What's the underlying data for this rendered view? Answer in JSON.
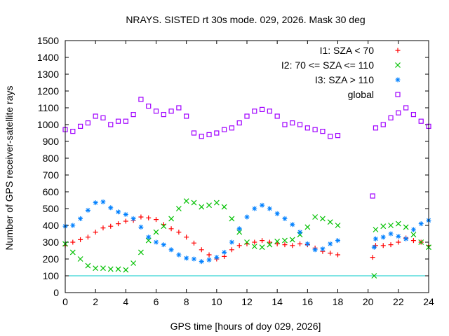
{
  "chart_data": {
    "type": "scatter",
    "title": "NRAYS. SISTED rt 30s mode. 029, 2026. Mask 30 deg",
    "xlabel": "GPS time [hours of doy 029, 2026]",
    "ylabel": "Number of GPS receiver-satellite rays",
    "xlim": [
      0,
      24
    ],
    "ylim": [
      0,
      1500
    ],
    "xticks": [
      "0",
      "2",
      "4",
      "6",
      "8",
      "10",
      "12",
      "14",
      "16",
      "18",
      "20",
      "22",
      "24"
    ],
    "yticks": [
      "0",
      "100",
      "200",
      "300",
      "400",
      "500",
      "600",
      "700",
      "800",
      "900",
      "1000",
      "1100",
      "1200",
      "1300",
      "1400",
      "1500"
    ],
    "legend_position": "top-right",
    "reference_line": {
      "y": 100,
      "color": "#00c8c8"
    },
    "series": [
      {
        "name": "I1: SZA < 70",
        "marker": "+",
        "color": "#ff0000",
        "x": [
          0,
          0.5,
          1,
          1.5,
          2,
          2.5,
          3,
          3.5,
          4,
          4.5,
          5,
          5.5,
          6,
          6.5,
          7,
          7.5,
          8,
          8.5,
          9,
          9.5,
          10,
          10.5,
          11,
          11.5,
          12,
          12.5,
          13,
          13.5,
          14,
          14.5,
          15,
          15.5,
          16,
          16.5,
          17,
          17.5,
          18,
          20.3,
          20.5,
          21,
          21.5,
          22,
          22.5,
          23,
          23.5,
          24
        ],
        "values": [
          280,
          300,
          315,
          330,
          360,
          385,
          395,
          410,
          425,
          430,
          450,
          445,
          435,
          405,
          380,
          360,
          330,
          295,
          255,
          225,
          200,
          215,
          255,
          280,
          290,
          300,
          310,
          300,
          290,
          285,
          280,
          290,
          285,
          265,
          245,
          235,
          225,
          210,
          280,
          280,
          285,
          300,
          325,
          310,
          300,
          280
        ]
      },
      {
        "name": "I2: 70 <= SZA <= 110",
        "marker": "x",
        "color": "#00c000",
        "x": [
          0,
          0.5,
          1,
          1.5,
          2,
          2.5,
          3,
          3.5,
          4,
          4.5,
          5,
          5.5,
          6,
          6.5,
          7,
          7.5,
          8,
          8.5,
          9,
          9.5,
          10,
          10.5,
          11,
          11.5,
          12,
          12.5,
          13,
          13.5,
          14,
          14.5,
          15,
          15.5,
          16,
          16.5,
          17,
          17.5,
          18,
          20.4,
          20.5,
          21,
          21.5,
          22,
          22.5,
          23,
          23.5,
          24
        ],
        "values": [
          290,
          240,
          200,
          160,
          145,
          145,
          140,
          140,
          135,
          175,
          240,
          310,
          360,
          395,
          440,
          500,
          545,
          535,
          510,
          520,
          535,
          510,
          440,
          360,
          300,
          275,
          270,
          285,
          305,
          310,
          315,
          345,
          390,
          450,
          440,
          420,
          400,
          100,
          375,
          395,
          400,
          410,
          390,
          345,
          300,
          270
        ]
      },
      {
        "name": "I3: SZA > 110",
        "marker": "*",
        "color": "#0080ff",
        "x": [
          0,
          0.5,
          1,
          1.5,
          2,
          2.5,
          3,
          3.5,
          4,
          4.5,
          5,
          5.5,
          6,
          6.5,
          7,
          7.5,
          8,
          8.5,
          9,
          9.5,
          10,
          10.5,
          11,
          11.5,
          12,
          12.5,
          13,
          13.5,
          14,
          14.5,
          15,
          15.5,
          16,
          16.5,
          17,
          17.5,
          18,
          20.4,
          20.5,
          21,
          21.5,
          22,
          22.5,
          23,
          23.5,
          24
        ],
        "values": [
          395,
          400,
          440,
          490,
          535,
          540,
          505,
          480,
          465,
          440,
          390,
          330,
          300,
          285,
          255,
          225,
          205,
          200,
          185,
          195,
          210,
          240,
          300,
          380,
          450,
          500,
          520,
          500,
          470,
          440,
          405,
          360,
          290,
          255,
          260,
          290,
          310,
          270,
          320,
          330,
          350,
          335,
          320,
          375,
          410,
          430
        ]
      },
      {
        "name": "global",
        "marker": "square",
        "color": "#a000ff",
        "x": [
          0,
          0.5,
          1,
          1.5,
          2,
          2.5,
          3,
          3.5,
          4,
          4.5,
          5,
          5.5,
          6,
          6.5,
          7,
          7.5,
          8,
          8.5,
          9,
          9.5,
          10,
          10.5,
          11,
          11.5,
          12,
          12.5,
          13,
          13.5,
          14,
          14.5,
          15,
          15.5,
          16,
          16.5,
          17,
          17.5,
          18,
          20.3,
          20.5,
          21,
          21.5,
          22,
          22.5,
          23,
          23.5,
          24
        ],
        "values": [
          970,
          960,
          990,
          1010,
          1050,
          1040,
          1000,
          1020,
          1020,
          1060,
          1150,
          1110,
          1080,
          1060,
          1080,
          1100,
          1050,
          950,
          930,
          940,
          950,
          970,
          980,
          1010,
          1050,
          1080,
          1090,
          1080,
          1050,
          1000,
          1010,
          1000,
          980,
          970,
          960,
          930,
          935,
          575,
          980,
          1000,
          1040,
          1070,
          1100,
          1060,
          1020,
          990
        ]
      }
    ]
  }
}
